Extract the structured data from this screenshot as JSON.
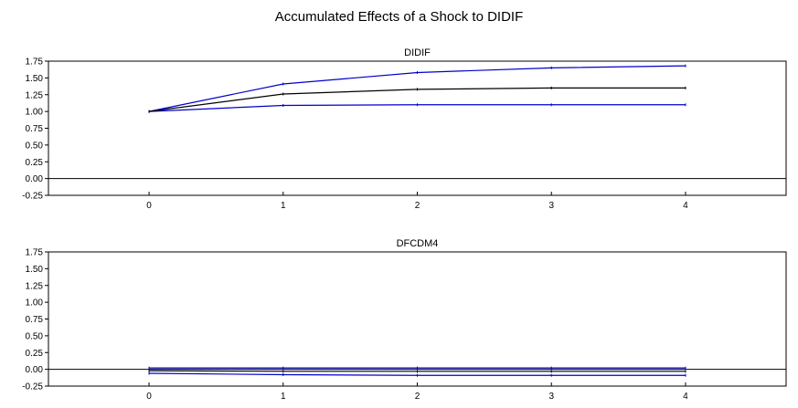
{
  "title": "Accumulated Effects of a Shock to DIDIF",
  "colors": {
    "point_estimate": "#000000",
    "confidence_band": "#0000cc",
    "zero_line": "#000000",
    "frame": "#000000"
  },
  "chart_data": [
    {
      "type": "line",
      "title": "DIDIF",
      "xlabel": "",
      "ylabel": "",
      "x": [
        0,
        1,
        2,
        3,
        4
      ],
      "xlim": [
        -0.75,
        4.75
      ],
      "ylim": [
        -0.25,
        1.75
      ],
      "yticks": [
        "1.75",
        "1.50",
        "1.25",
        "1.00",
        "0.75",
        "0.50",
        "0.25",
        "0.00",
        "-0.25"
      ],
      "xticks": [
        "0",
        "1",
        "2",
        "3",
        "4"
      ],
      "grid": false,
      "zero_line": true,
      "series": [
        {
          "role": "upper-band",
          "values": [
            1.0,
            1.41,
            1.58,
            1.65,
            1.68
          ]
        },
        {
          "role": "estimate",
          "values": [
            1.0,
            1.26,
            1.33,
            1.35,
            1.35
          ]
        },
        {
          "role": "lower-band",
          "values": [
            1.0,
            1.09,
            1.1,
            1.1,
            1.1
          ]
        }
      ]
    },
    {
      "type": "line",
      "title": "DFCDM4",
      "xlabel": "",
      "ylabel": "",
      "x": [
        0,
        1,
        2,
        3,
        4
      ],
      "xlim": [
        -0.75,
        4.75
      ],
      "ylim": [
        -0.25,
        1.75
      ],
      "yticks": [
        "1.75",
        "1.50",
        "1.25",
        "1.00",
        "0.75",
        "0.50",
        "0.25",
        "0.00",
        "-0.25"
      ],
      "xticks": [
        "0",
        "1",
        "2",
        "3",
        "4"
      ],
      "grid": false,
      "zero_line": true,
      "series": [
        {
          "role": "upper-band",
          "values": [
            0.02,
            0.02,
            0.02,
            0.02,
            0.02
          ]
        },
        {
          "role": "estimate",
          "values": [
            -0.02,
            -0.03,
            -0.03,
            -0.03,
            -0.03
          ]
        },
        {
          "role": "lower-band",
          "values": [
            -0.06,
            -0.08,
            -0.09,
            -0.09,
            -0.09
          ]
        }
      ]
    }
  ]
}
